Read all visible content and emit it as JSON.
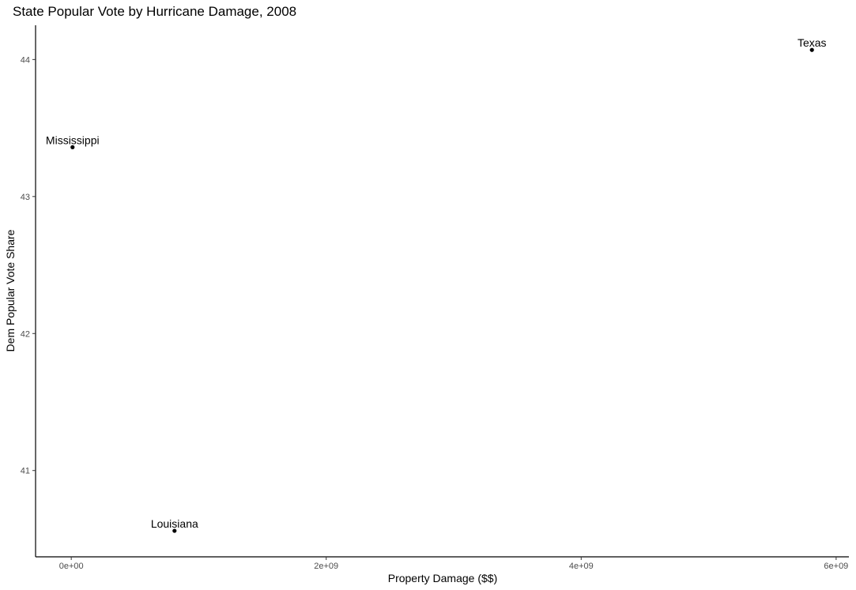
{
  "chart_data": {
    "type": "scatter",
    "title": "State Popular Vote by Hurricane Damage, 2008",
    "xlabel": "Property Damage ($$)",
    "ylabel": "Dem Popular Vote Share",
    "xlim": [
      -280000000,
      6100000000
    ],
    "ylim": [
      40.37,
      44.25
    ],
    "xticks": [
      {
        "value": 0,
        "label": "0e+00"
      },
      {
        "value": 2000000000,
        "label": "2e+09"
      },
      {
        "value": 4000000000,
        "label": "4e+09"
      },
      {
        "value": 6000000000,
        "label": "6e+09"
      }
    ],
    "yticks": [
      {
        "value": 41,
        "label": "41"
      },
      {
        "value": 42,
        "label": "42"
      },
      {
        "value": 43,
        "label": "43"
      },
      {
        "value": 44,
        "label": "44"
      }
    ],
    "grid": false,
    "points": [
      {
        "label": "Mississippi",
        "x": 10000000,
        "y": 43.36
      },
      {
        "label": "Louisiana",
        "x": 810000000,
        "y": 40.56
      },
      {
        "label": "Texas",
        "x": 5810000000,
        "y": 44.07
      }
    ],
    "colors": {
      "point": "#000000",
      "axis": "#000000",
      "tick_label": "#4d4d4d"
    }
  }
}
